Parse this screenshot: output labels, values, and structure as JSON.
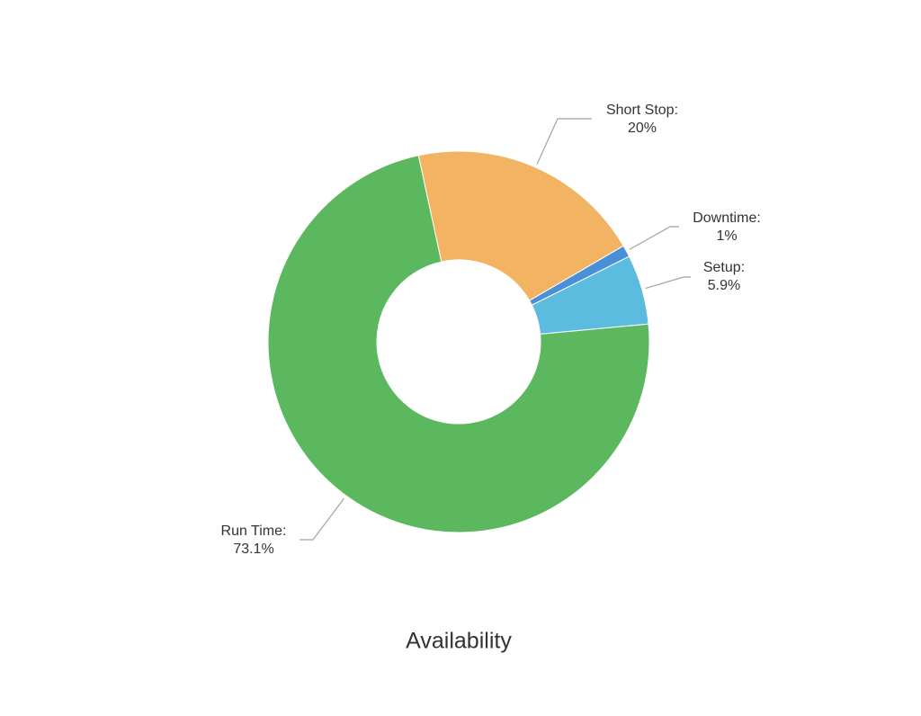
{
  "chart_data": {
    "type": "donut",
    "title": "Availability",
    "categories": [
      "Short Stop:",
      "Downtime:",
      "Setup:",
      "Run Time:"
    ],
    "values": [
      20,
      1,
      5.9,
      73.1
    ],
    "value_labels": [
      "20%",
      "1%",
      "5.9%",
      "73.1%"
    ],
    "colors": [
      "#f2b463",
      "#4a90d9",
      "#5bbcdf",
      "#5cb85f"
    ]
  }
}
